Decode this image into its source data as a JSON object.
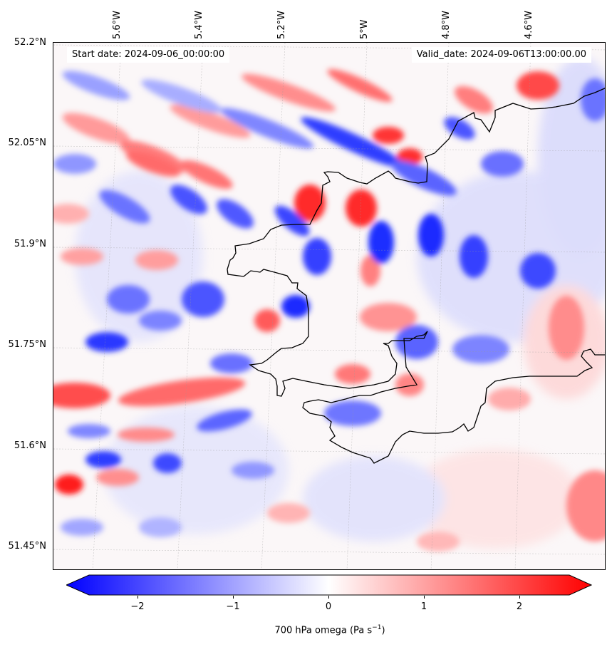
{
  "map": {
    "start_date": "Start date: 2024-09-06_00:00:00",
    "valid_date": "Valid_date: 2024-09-06T13:00:00.00",
    "lat_labels": [
      "52.2°N",
      "52.05°N",
      "51.9°N",
      "51.75°N",
      "51.6°N",
      "51.45°N"
    ],
    "lon_labels": [
      "5.6°W",
      "5.4°W",
      "5.2°W",
      "5°W",
      "4.8°W",
      "4.6°W"
    ],
    "colorbar": {
      "label": "700 hPa omega (Pa s",
      "label_exp": "−1",
      "label_close": ")",
      "ticks": [
        "−2",
        "−1",
        "0",
        "1",
        "2"
      ],
      "vmin": -2.5,
      "vmax": 2.5,
      "colormap": "bwr",
      "extend": "both"
    },
    "colors": {
      "min": "#0000ff",
      "mid": "#ffffff",
      "max": "#ff0000",
      "coastline": "#000000"
    }
  }
}
